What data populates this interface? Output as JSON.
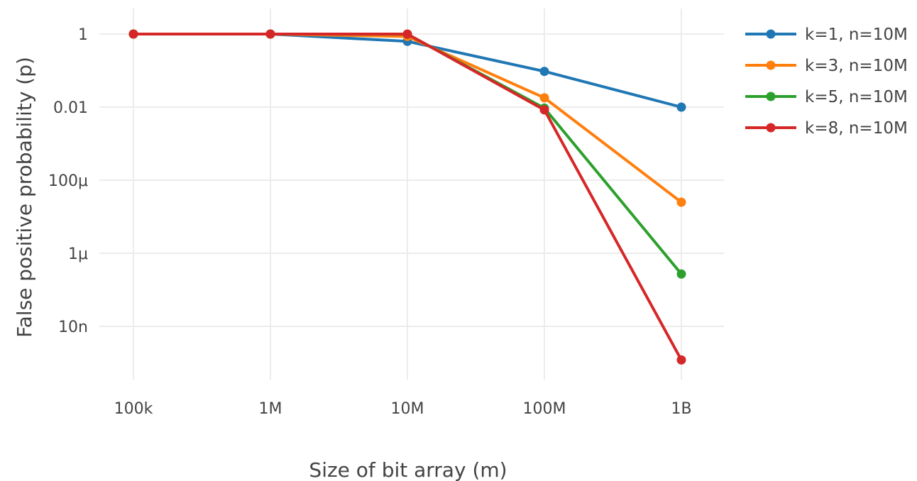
{
  "chart_data": {
    "type": "line",
    "title": "",
    "xlabel": "Size of bit array (m)",
    "ylabel": "False positive probability (p)",
    "x_scale": "log",
    "y_scale": "log",
    "grid": true,
    "legend_position": "top-right",
    "x": [
      100000,
      1000000,
      10000000,
      100000000,
      1000000000
    ],
    "x_ticks": [
      {
        "value": 100000,
        "label": "100k"
      },
      {
        "value": 1000000,
        "label": "1M"
      },
      {
        "value": 10000000,
        "label": "10M"
      },
      {
        "value": 100000000,
        "label": "100M"
      },
      {
        "value": 1000000000,
        "label": "1B"
      }
    ],
    "y_ticks": [
      {
        "value": 1,
        "label": "1"
      },
      {
        "value": 0.01,
        "label": "0.01"
      },
      {
        "value": 0.0001,
        "label": "100μ"
      },
      {
        "value": 1e-06,
        "label": "1μ"
      },
      {
        "value": 1e-08,
        "label": "10n"
      }
    ],
    "xlim": [
      100000,
      1000000000
    ],
    "ylim": [
      1e-09,
      1
    ],
    "series": [
      {
        "name": "k=1, n=10M",
        "color": "#1f77b4",
        "values": [
          1,
          1,
          0.63,
          0.095,
          0.01
        ]
      },
      {
        "name": "k=3, n=10M",
        "color": "#ff7f0e",
        "values": [
          1,
          1,
          0.86,
          0.018,
          2.5e-05
        ]
      },
      {
        "name": "k=5, n=10M",
        "color": "#2ca02c",
        "values": [
          1,
          1,
          0.99,
          0.0094,
          2.7e-07
        ]
      },
      {
        "name": "k=8, n=10M",
        "color": "#d62728",
        "values": [
          1,
          1,
          1,
          0.0084,
          1.2e-09
        ]
      }
    ]
  }
}
